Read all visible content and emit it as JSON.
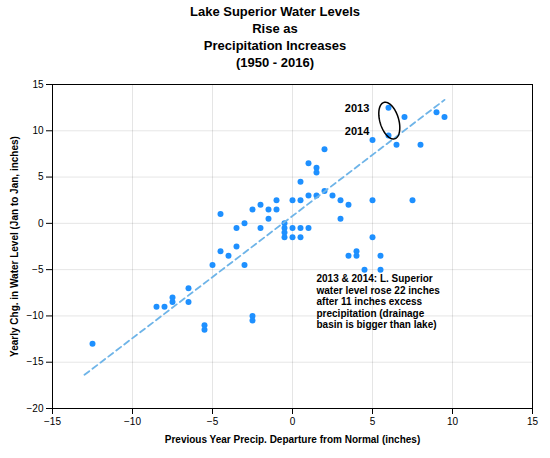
{
  "chart_data": {
    "type": "scatter",
    "title": "Lake Superior Water Levels\nRise as\nPrecipitation Increases\n(1950 - 2016)",
    "xlabel": "Previous Year Precip. Departure from Normal (inches)",
    "ylabel": "Yearly Chg. in Water Level (Jan to Jan, inches)",
    "xlim": [
      -15,
      15
    ],
    "ylim": [
      -20,
      15
    ],
    "xticks": [
      -15,
      -10,
      -5,
      0,
      5,
      10,
      15
    ],
    "yticks": [
      -20,
      -15,
      -10,
      -5,
      0,
      5,
      10,
      15
    ],
    "grid": true,
    "series": [
      {
        "type": "scatter",
        "color": "#1E90FF",
        "marker": "circle",
        "x": [
          -12.5,
          -8.5,
          -8.0,
          -7.5,
          -7.5,
          -6.5,
          -6.5,
          -5.5,
          -5.5,
          -5.0,
          -4.5,
          -4.5,
          -4.0,
          -3.5,
          -3.5,
          -3.0,
          -3.0,
          -2.5,
          -2.5,
          -2.5,
          -2.0,
          -2.0,
          -1.5,
          -1.5,
          -1.0,
          -1.0,
          -0.5,
          -0.5,
          -0.5,
          -0.5,
          0.0,
          0.0,
          0.0,
          0.5,
          0.5,
          0.5,
          0.5,
          1.0,
          1.0,
          1.0,
          1.5,
          1.5,
          1.5,
          2.0,
          2.0,
          2.5,
          3.0,
          3.0,
          3.5,
          3.5,
          4.0,
          4.0,
          4.5,
          5.0,
          5.0,
          5.0,
          5.5,
          5.5,
          6.0,
          6.0,
          6.5,
          7.0,
          7.5,
          8.0,
          9.0,
          9.5
        ],
        "values": [
          -13.0,
          -9.0,
          -9.0,
          -8.5,
          -8.0,
          -8.5,
          -7.0,
          -11.5,
          -11.0,
          -4.5,
          1.0,
          -3.0,
          -3.5,
          -0.5,
          -2.5,
          -4.5,
          0.0,
          -10.5,
          -10.0,
          1.5,
          2.0,
          -0.5,
          1.5,
          0.5,
          2.5,
          1.5,
          0.0,
          -0.5,
          -1.0,
          -1.5,
          -0.5,
          -1.5,
          2.5,
          4.5,
          -0.5,
          -1.5,
          2.5,
          6.5,
          3.0,
          -0.5,
          6.0,
          5.5,
          3.0,
          8.0,
          3.5,
          3.0,
          2.5,
          0.5,
          2.0,
          -3.5,
          -3.0,
          -3.5,
          -5.0,
          9.0,
          2.5,
          -1.5,
          -5.0,
          -3.5,
          12.5,
          9.5,
          8.5,
          11.5,
          2.5,
          8.5,
          12.0,
          11.5
        ]
      },
      {
        "type": "line",
        "color": "#6EB4E8",
        "line_style": "dashed",
        "x": [
          -13.0,
          9.5
        ],
        "values": [
          -16.36,
          13.34
        ]
      }
    ],
    "ellipse": {
      "cx": 6.05,
      "cy": 11.1,
      "width": 1.2,
      "height": 4.0,
      "angle": 8
    },
    "annotations": [
      {
        "text": "2013",
        "x": 4.8,
        "y": 12.5
      },
      {
        "text": "2014",
        "x": 4.8,
        "y": 10.0
      },
      {
        "text": "2013 & 2014: L. Superior\nwater level rose 22 inches\nafter 11 inches excess\nprecipitation (drainage\nbasin is bigger than lake)",
        "x": 1.5,
        "y": -5.5
      }
    ]
  }
}
